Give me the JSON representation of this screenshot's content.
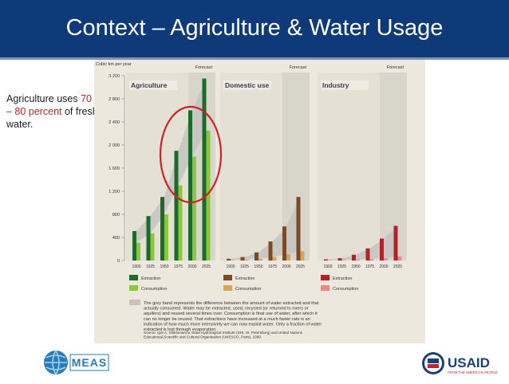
{
  "slide": {
    "title": "Context – Agriculture & Water Usage",
    "text_before": "Agriculture uses ",
    "text_highlight": "70 – 80 percent",
    "text_after": " of fresh water."
  },
  "chart_data": {
    "type": "bar",
    "y_unit_label": "Cubic km per year",
    "forecast_label": "Forecast",
    "y_ticks": [
      0,
      400,
      800,
      1200,
      1600,
      2000,
      2400,
      2800,
      3200
    ],
    "y_tick_labels": [
      "0",
      "400",
      "800",
      "1 200",
      "1 600",
      "2 000",
      "2 400",
      "2 800",
      "3 200"
    ],
    "ylim": [
      0,
      3200
    ],
    "categories": [
      "1900",
      "1925",
      "1950",
      "1975",
      "2000",
      "2025"
    ],
    "panels": [
      {
        "name": "Agriculture",
        "series": [
          {
            "name": "Extraction",
            "values": [
              510,
              770,
              1100,
              1900,
              2600,
              3150
            ]
          },
          {
            "name": "Consumption",
            "values": [
              310,
              470,
              800,
              1300,
              1800,
              2250
            ]
          }
        ],
        "colors": {
          "extraction": "#1b6b2a",
          "consumption": "#8cc63f"
        }
      },
      {
        "name": "Domestic use",
        "series": [
          {
            "name": "Extraction",
            "values": [
              30,
              60,
              140,
              330,
              590,
              1100
            ]
          },
          {
            "name": "Consumption",
            "values": [
              10,
              15,
              30,
              60,
              110,
              160
            ]
          }
        ],
        "colors": {
          "extraction": "#7a4a2a",
          "consumption": "#d9a45a"
        }
      },
      {
        "name": "Industry",
        "series": [
          {
            "name": "Extraction",
            "values": [
              20,
              40,
              100,
              210,
              380,
              600
            ]
          },
          {
            "name": "Consumption",
            "values": [
              5,
              8,
              15,
              25,
              40,
              70
            ]
          }
        ],
        "colors": {
          "extraction": "#b0232a",
          "consumption": "#e98a86"
        }
      }
    ],
    "legend": {
      "extraction": "Extraction",
      "consumption": "Consumption"
    },
    "note": "The grey band represents the difference between the amount of water extracted and that actually consumed. Water may be extracted, used, recycled (or returned to rivers or aquifers) and reused several times over. Consumption is final use of water, after which it can no longer be reused. That extractions have increased at a much faster rate is an indication of how much more intensively we can now exploit water. Only a fraction of water extracted is lost through evaporation.",
    "source": "Source: Igor A. Shiklomanov, State Hydrological Institute (SHI, St. Petersburg) and United Nations Educational,Scientific and Cultural Organisation (UNESCO, Paris), 1999."
  },
  "footer": {
    "left_logo_text": "MEAS",
    "right_logo_text": "USAID",
    "right_logo_tagline": "FROM THE AMERICAN PEOPLE"
  },
  "colors": {
    "title_bar": "#0f3a7a",
    "highlight_red": "#c0262d",
    "grey_band": "#c5c3c0",
    "chart_background": "#ece8dd"
  }
}
